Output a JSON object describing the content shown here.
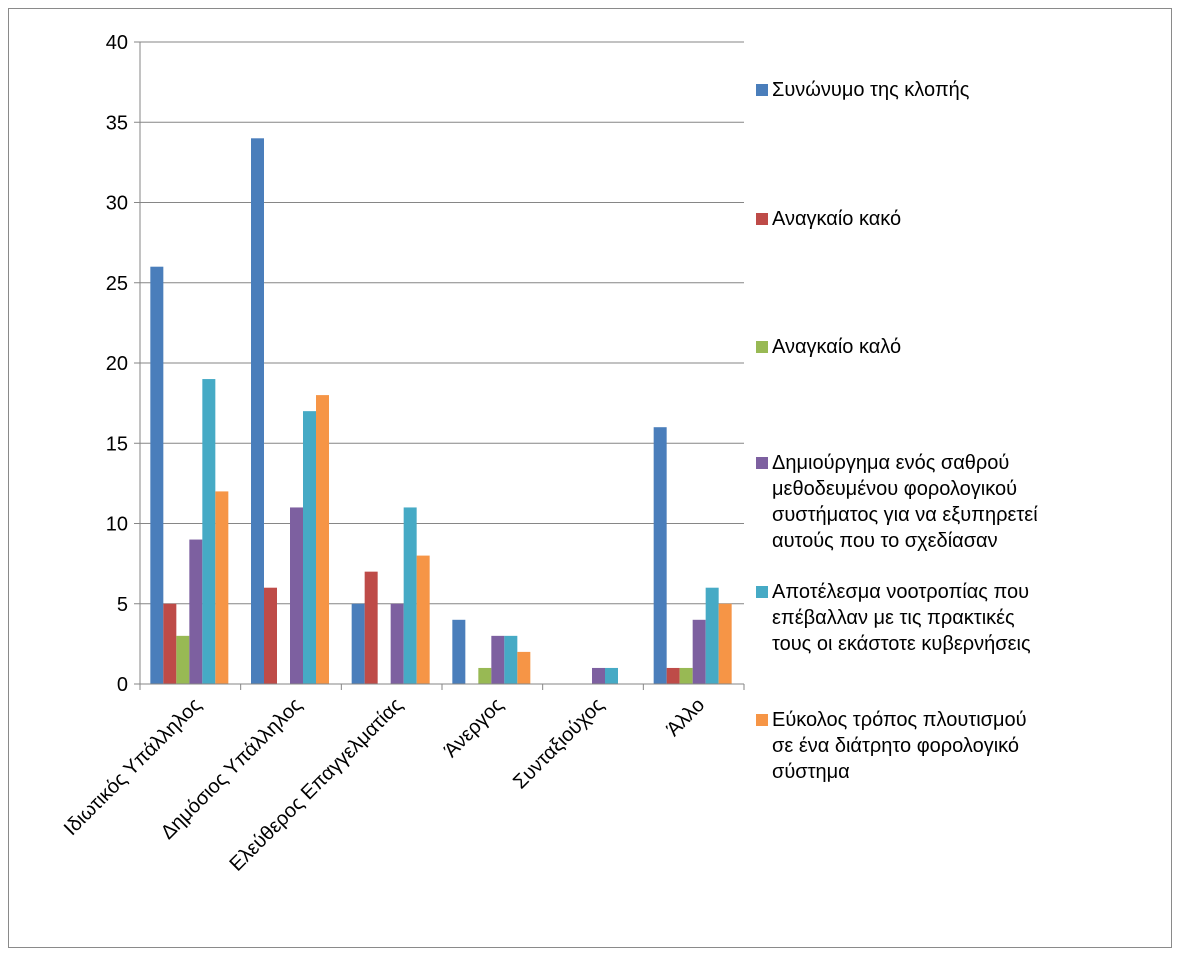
{
  "chart_data": {
    "type": "bar",
    "title": "",
    "xlabel": "",
    "ylabel": "",
    "ylim": [
      0,
      40
    ],
    "yticks": [
      0,
      5,
      10,
      15,
      20,
      25,
      30,
      35,
      40
    ],
    "grid": true,
    "legend_position": "right",
    "categories": [
      "Ιδιωτικός Υπάλληλος",
      "Δημόσιος Υπάλληλος",
      "Ελεύθερος Επαγγελματίας",
      "Άνεργος",
      "Συνταξιούχος",
      "Άλλο"
    ],
    "series": [
      {
        "name": "Συνώνυμο της κλοπής",
        "legend_lines": [
          "Συνώνυμο της κλοπής"
        ],
        "color": "#4a7ebb",
        "values": [
          26,
          34,
          5,
          4,
          0,
          16
        ]
      },
      {
        "name": "Αναγκαίο κακό",
        "legend_lines": [
          "Αναγκαίο κακό"
        ],
        "color": "#be4b48",
        "values": [
          5,
          6,
          7,
          0,
          0,
          1
        ]
      },
      {
        "name": "Αναγκαίο καλό",
        "legend_lines": [
          "Αναγκαίο καλό"
        ],
        "color": "#98b954",
        "values": [
          3,
          0,
          0,
          1,
          0,
          1
        ]
      },
      {
        "name": "Δημιούργημα ενός σαθρού μεθοδευμένου φορολογικού συστήματος για να εξυπηρετεί αυτούς που το σχεδίασαν",
        "legend_lines": [
          "Δημιούργημα ενός σαθρού",
          "μεθοδευμένου φορολογικού",
          "συστήματος για να εξυπηρετεί",
          "αυτούς που το σχεδίασαν"
        ],
        "color": "#7d60a0",
        "values": [
          9,
          11,
          5,
          3,
          1,
          4
        ]
      },
      {
        "name": "Αποτέλεσμα νοοτροπίας που επέβαλλαν με τις πρακτικές τους οι εκάστοτε κυβερνήσεις",
        "legend_lines": [
          "Αποτέλεσμα νοοτροπίας που",
          "επέβαλλαν με τις πρακτικές",
          "τους οι εκάστοτε κυβερνήσεις"
        ],
        "color": "#46aac5",
        "values": [
          19,
          17,
          11,
          3,
          1,
          6
        ]
      },
      {
        "name": "Εύκολος τρόπος πλουτισμού σε ένα διάτρητο φορολογικό σύστημα",
        "legend_lines": [
          "Εύκολος τρόπος πλουτισμού",
          "σε ένα διάτρητο φορολογικό",
          "σύστημα"
        ],
        "color": "#f69546",
        "values": [
          12,
          18,
          8,
          2,
          0,
          5
        ]
      }
    ]
  }
}
